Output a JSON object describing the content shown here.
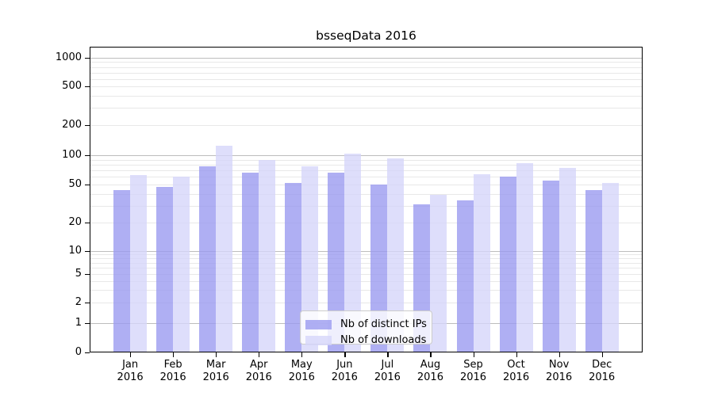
{
  "chart_data": {
    "type": "bar",
    "title": "bsseqData 2016",
    "categories": [
      "Jan",
      "Feb",
      "Mar",
      "Apr",
      "May",
      "Jun",
      "Jul",
      "Aug",
      "Sep",
      "Oct",
      "Nov",
      "Dec"
    ],
    "year_label": "2016",
    "series": [
      {
        "name": "Nb of distinct IPs",
        "color": "#9999f0",
        "values": [
          44,
          47,
          77,
          66,
          52,
          66,
          50,
          31,
          34,
          60,
          55,
          44
        ]
      },
      {
        "name": "Nb of downloads",
        "color": "#d5d5fa",
        "values": [
          63,
          60,
          125,
          90,
          77,
          104,
          93,
          39,
          64,
          83,
          74,
          52
        ]
      }
    ],
    "xlabel": "",
    "ylabel": "",
    "y_ticks": [
      0,
      1,
      2,
      5,
      10,
      20,
      50,
      100,
      200,
      500,
      1000
    ],
    "y_scale": "log-like",
    "ylim": [
      0,
      1300
    ],
    "grid": "horizontal major and minor lines",
    "legend_position": "inside bottom-center"
  },
  "colors": {
    "ips_bar": "#9999f0",
    "downloads_bar": "#d5d5fa",
    "major_grid": "#bdbdbd",
    "minor_grid": "#e8e8e8",
    "axis": "#000000",
    "legend_border": "#cccccc",
    "background": "#ffffff"
  }
}
